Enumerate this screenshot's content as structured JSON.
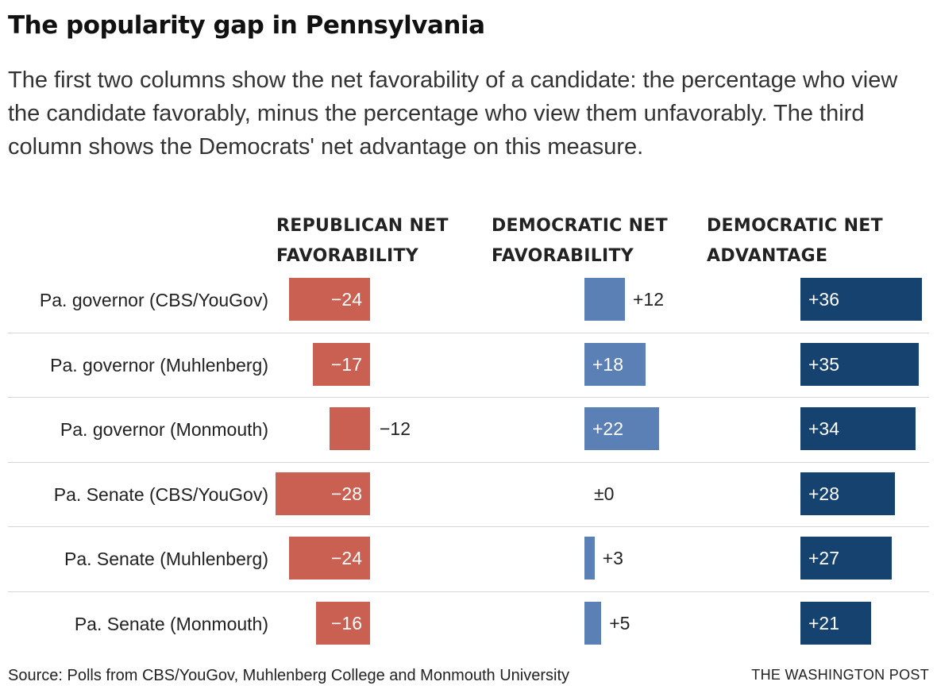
{
  "chart_data": {
    "type": "bar",
    "title": "The popularity gap in Pennsylvania",
    "subtitle": "The first two columns show the net favorability of a candidate: the percentage who view the candidate favorably, minus the percentage who view them unfavorably. The third column shows the Democrats' net advantage on this measure.",
    "categories": [
      "Pa. governor (CBS/YouGov)",
      "Pa. governor (Muhlenberg)",
      "Pa. governor (Monmouth)",
      "Pa. Senate (CBS/YouGov)",
      "Pa. Senate (Muhlenberg)",
      "Pa. Senate (Monmouth)"
    ],
    "series": [
      {
        "name": "REPUBLICAN NET FAVORABILITY",
        "values": [
          -24,
          -17,
          -12,
          -28,
          -24,
          -16
        ],
        "labels": [
          "−24",
          "−17",
          "−12",
          "−28",
          "−24",
          "−16"
        ],
        "color": "#c96052"
      },
      {
        "name": "DEMOCRATIC NET FAVORABILITY",
        "values": [
          12,
          18,
          22,
          0,
          3,
          5
        ],
        "labels": [
          "+12",
          "+18",
          "+22",
          "±0",
          "+3",
          "+5"
        ],
        "color": "#5b80b5"
      },
      {
        "name": "DEMOCRATIC NET ADVANTAGE",
        "values": [
          36,
          35,
          34,
          28,
          27,
          21
        ],
        "labels": [
          "+36",
          "+35",
          "+34",
          "+28",
          "+27",
          "+21"
        ],
        "color": "#15426f"
      }
    ],
    "grid": false
  },
  "headers": [
    [
      "REPUBLICAN NET",
      "FAVORABILITY"
    ],
    [
      "DEMOCRATIC NET",
      "FAVORABILITY"
    ],
    [
      "DEMOCRATIC NET",
      "ADVANTAGE"
    ]
  ],
  "footer": {
    "source": "Source: Polls from CBS/YouGov, Muhlenberg College and Monmouth University",
    "credit": "THE WASHINGTON POST"
  }
}
